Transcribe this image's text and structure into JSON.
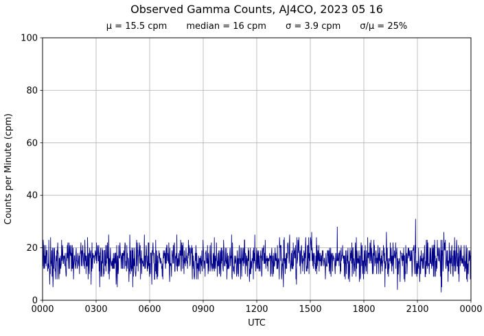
{
  "figure": {
    "title": "Observed Gamma Counts, AJ4CO, 2023 05 16",
    "stats": [
      "μ = 15.5 cpm",
      "median = 16 cpm",
      "σ = 3.9 cpm",
      "σ/μ = 25%"
    ],
    "xlabel": "UTC",
    "ylabel": "Counts per Minute (cpm)"
  },
  "chart_data": {
    "type": "line",
    "title": "Observed Gamma Counts, AJ4CO, 2023 05 16",
    "subtitle_stats": {
      "mu_cpm": 15.5,
      "median_cpm": 16,
      "sigma_cpm": 3.9,
      "sigma_over_mu_pct": 25
    },
    "xlabel": "UTC",
    "ylabel": "Counts per Minute (cpm)",
    "x_tick_labels": [
      "0000",
      "0300",
      "0600",
      "0900",
      "1200",
      "1500",
      "1800",
      "2100",
      "0000"
    ],
    "x_tick_minutes": [
      0,
      180,
      360,
      540,
      720,
      900,
      1080,
      1260,
      1440
    ],
    "y_ticks": [
      0,
      20,
      40,
      60,
      80,
      100
    ],
    "xlim_minutes": [
      0,
      1440
    ],
    "ylim": [
      0,
      100
    ],
    "grid": true,
    "legend": "none",
    "background_color": "#ffffff",
    "line_color": "#00008b",
    "grid_color": "#b0b0b0",
    "axis_color": "#000000",
    "series": [
      {
        "name": "observed gamma counts",
        "points_per_day": 1440,
        "sampling": "1 integer cpm value per minute, 24 h span",
        "mean_cpm": 15.5,
        "median_cpm": 16,
        "sigma_cpm": 3.9,
        "approx_range_cpm": [
          4,
          30
        ],
        "generator": {
          "distribution": "gaussian-rounded-clamped-at-0",
          "seed": 20230516
        }
      }
    ]
  }
}
